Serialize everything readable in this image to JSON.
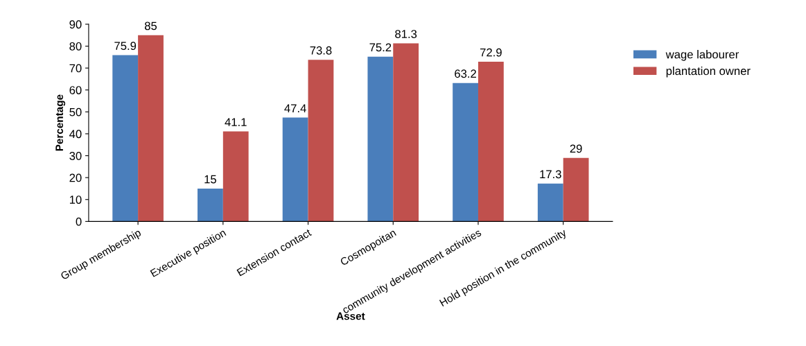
{
  "chart_data": {
    "type": "bar",
    "xlabel": "Asset",
    "ylabel": "Percentage",
    "categories": [
      "Group membership",
      "Executive position",
      "Extension contact",
      "Cosmopoitan",
      "community development activities",
      "Hold position in the community"
    ],
    "series": [
      {
        "name": "wage labourer",
        "color": "#4a7ebb",
        "values": [
          75.9,
          15,
          47.4,
          75.2,
          63.2,
          17.3
        ]
      },
      {
        "name": "plantation owner",
        "color": "#c0504d",
        "values": [
          85,
          41.1,
          73.8,
          81.3,
          72.9,
          29
        ]
      }
    ],
    "ylim": [
      0,
      90
    ],
    "yticks": [
      0,
      10,
      20,
      30,
      40,
      50,
      60,
      70,
      80,
      90
    ],
    "data_labels": true,
    "grid": false,
    "legend": "right"
  }
}
